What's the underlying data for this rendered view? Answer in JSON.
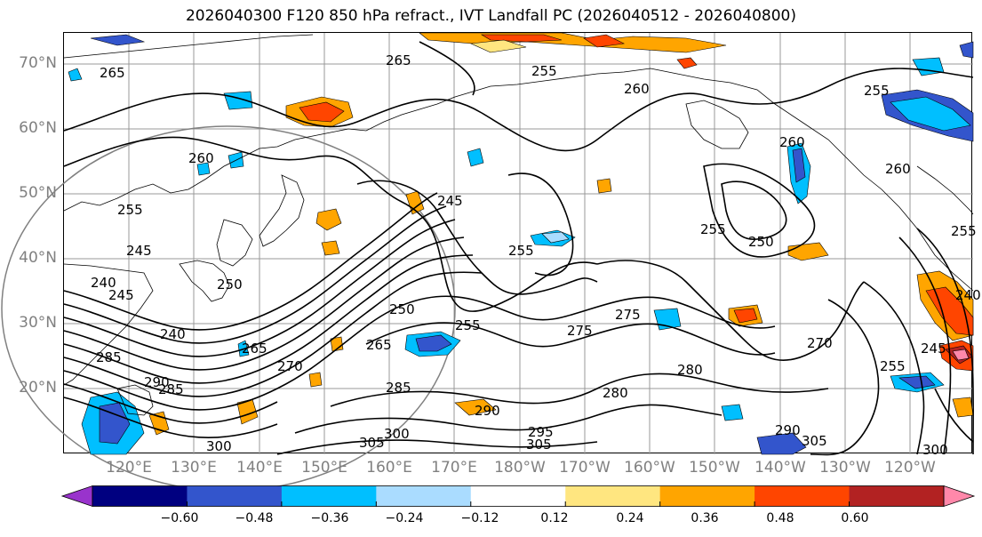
{
  "title": "2026040300 F120 850 hPa refract., IVT Landfall PC (2026040512 - 2026040800)",
  "lat_labels": [
    "70°N",
    "60°N",
    "50°N",
    "40°N",
    "30°N",
    "20°N"
  ],
  "lon_labels": [
    "120°E",
    "130°E",
    "140°E",
    "150°E",
    "160°E",
    "170°E",
    "180°W",
    "170°W",
    "160°W",
    "150°W",
    "140°W",
    "130°W",
    "120°W"
  ],
  "colorbar": {
    "colors": [
      "#9933cc",
      "#000080",
      "#3355cc",
      "#00bfff",
      "#aadcff",
      "#ffffff",
      "#ffe680",
      "#ffa500",
      "#ff4500",
      "#b22222",
      "#ff88aa"
    ],
    "tick_labels": [
      "−0.60",
      "−0.48",
      "−0.36",
      "−0.24",
      "−0.12",
      "0.12",
      "0.24",
      "0.36",
      "0.48",
      "0.60"
    ]
  },
  "contour_labels": [
    "265",
    "265",
    "255",
    "260",
    "255",
    "260",
    "255",
    "260",
    "245",
    "255",
    "245",
    "250",
    "245",
    "250",
    "255",
    "250",
    "255",
    "255",
    "240",
    "265",
    "265",
    "275",
    "275",
    "280",
    "280",
    "270",
    "285",
    "290",
    "290",
    "285",
    "295",
    "300",
    "305",
    "305",
    "300",
    "305",
    "290",
    "270",
    "240",
    "245",
    "255",
    "240",
    "260",
    "285",
    "300"
  ]
}
